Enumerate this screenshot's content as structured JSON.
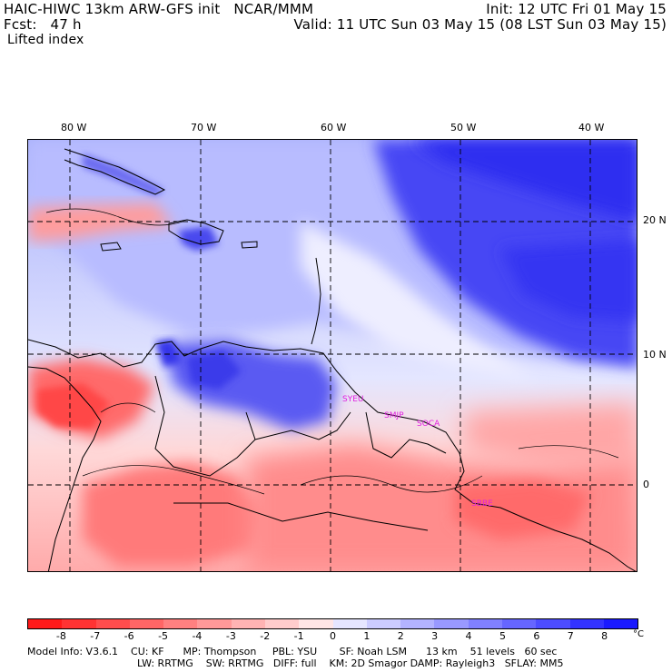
{
  "header": {
    "left_line1": "HAIC-HIWC 13km ARW-GFS init   NCAR/MMM",
    "left_line2": "Fcst:   47 h",
    "right_line1": "Init: 12 UTC Fri 01 May 15",
    "right_line2": "Valid: 11 UTC Sun 03 May 15 (08 LST Sun 03 May 15)",
    "field": "Lifted index"
  },
  "axes": {
    "longitude_labels": [
      "80 W",
      "70 W",
      "60 W",
      "50 W",
      "40 W"
    ],
    "latitude_labels": [
      "20 N",
      "10 N",
      "0"
    ]
  },
  "stations": [
    "SYEU",
    "SMJP",
    "SOCA",
    "SBBE"
  ],
  "colorbar": {
    "labels": [
      "-8",
      "-7",
      "-6",
      "-5",
      "-4",
      "-3",
      "-2",
      "-1",
      "0",
      "1",
      "2",
      "3",
      "4",
      "5",
      "6",
      "7",
      "8"
    ],
    "unit": "°C",
    "colors": [
      "#ff1a1a",
      "#ff3333",
      "#ff4d4d",
      "#ff6666",
      "#ff8080",
      "#ff9999",
      "#ffb3b3",
      "#ffcccc",
      "#ffe6e6",
      "#e6e6ff",
      "#ccccff",
      "#b3b3ff",
      "#9999ff",
      "#8080ff",
      "#6666ff",
      "#4d4dff",
      "#3333ff",
      "#1a1aff"
    ]
  },
  "footer": {
    "line1": "Model Info: V3.6.1    CU: KF      MP: Thompson     PBL: YSU       SF: Noah LSM      13 km    51 levels   60 sec",
    "line2": "LW: RRTMG    SW: RRTMG   DIFF: full    KM: 2D Smagor DAMP: Rayleigh3   SFLAY: MM5"
  },
  "colors": {
    "magenta_station": "#e020e0",
    "strong_blue": "#2525ee",
    "red": "#ff5555"
  }
}
